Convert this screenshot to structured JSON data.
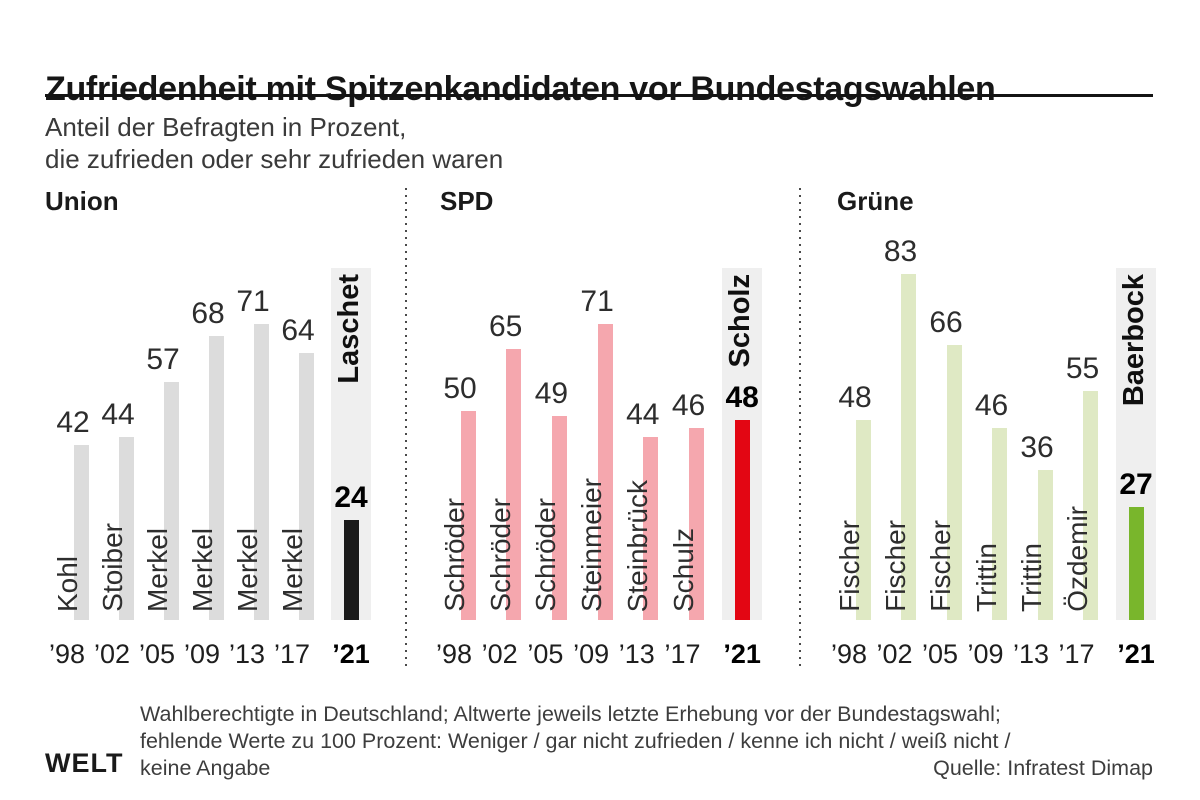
{
  "header": {
    "title": "Zufriedenheit mit Spitzenkandidaten vor Bundestagswahlen",
    "subtitle_line1": "Anteil der Befragten in Prozent,",
    "subtitle_line2": "die zufrieden oder sehr zufrieden waren"
  },
  "colors": {
    "union_bar": "#dcdcdc",
    "union_highlight": "#1b1b1b",
    "spd_bar": "#f5a7ae",
    "spd_highlight": "#e30613",
    "gruene_bar": "#dfe9c4",
    "gruene_highlight": "#79b62c",
    "highlight_column_bg": "#efefef",
    "title_rule": "#141414"
  },
  "chart_data": {
    "type": "bar",
    "title": "Zufriedenheit mit Spitzenkandidaten vor Bundestagswahlen",
    "subtitle": "Anteil der Befragten in Prozent, die zufrieden oder sehr zufrieden waren",
    "ylim": [
      0,
      100
    ],
    "grid": false,
    "legend": false,
    "axis": "none",
    "categories": [
      "’98",
      "’02",
      "’05",
      "’09",
      "’13",
      "’17",
      "’21"
    ],
    "groups": [
      {
        "party": "Union",
        "bar_color": "#dcdcdc",
        "highlight_color": "#1b1b1b",
        "candidates": [
          "Kohl",
          "Stoiber",
          "Merkel",
          "Merkel",
          "Merkel",
          "Merkel",
          "Laschet"
        ],
        "values": [
          42,
          44,
          57,
          68,
          71,
          64,
          24
        ],
        "highlight_index": 6,
        "highlight_candidate": "Laschet",
        "highlight_value": 24
      },
      {
        "party": "SPD",
        "bar_color": "#f5a7ae",
        "highlight_color": "#e30613",
        "candidates": [
          "Schröder",
          "Schröder",
          "Schröder",
          "Steinmeier",
          "Steinbrück",
          "Schulz",
          "Scholz"
        ],
        "values": [
          50,
          65,
          49,
          71,
          44,
          46,
          48
        ],
        "highlight_index": 6,
        "highlight_candidate": "Scholz",
        "highlight_value": 48
      },
      {
        "party": "Grüne",
        "bar_color": "#dfe9c4",
        "highlight_color": "#79b62c",
        "candidates": [
          "Fischer",
          "Fischer",
          "Fischer",
          "Trittin",
          "Trittin",
          "Özdemir",
          "Baerbock"
        ],
        "values": [
          48,
          83,
          66,
          46,
          36,
          55,
          27
        ],
        "highlight_index": 6,
        "highlight_candidate": "Baerbock",
        "highlight_value": 27
      }
    ]
  },
  "footer": {
    "brand": "WELT",
    "note_line1": "Wahlberechtigte in Deutschland; Altwerte jeweils letzte Erhebung vor der Bundestagswahl;",
    "note_line2": "fehlende Werte zu 100 Prozent: Weniger / gar nicht zufrieden / kenne ich nicht / weiß nicht /",
    "note_line3": "keine Angabe",
    "source": "Quelle: Infratest Dimap"
  }
}
